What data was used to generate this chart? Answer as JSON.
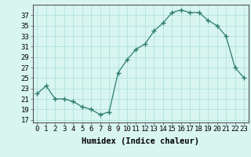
{
  "x": [
    0,
    1,
    2,
    3,
    4,
    5,
    6,
    7,
    8,
    9,
    10,
    11,
    12,
    13,
    14,
    15,
    16,
    17,
    18,
    19,
    20,
    21,
    22,
    23
  ],
  "y": [
    22,
    23.5,
    21,
    21,
    20.5,
    19.5,
    19,
    18,
    18.5,
    26,
    28.5,
    30.5,
    31.5,
    34,
    35.5,
    37.5,
    38,
    37.5,
    37.5,
    36,
    35,
    33,
    27,
    25
  ],
  "line_color": "#2e7d6e",
  "marker_color": "#2e7d6e",
  "bg_color": "#d8f5f0",
  "grid_color": "#aadddd",
  "xlabel": "Humidex (Indice chaleur)",
  "ylabel_ticks": [
    17,
    19,
    21,
    23,
    25,
    27,
    29,
    31,
    33,
    35,
    37
  ],
  "ylim": [
    16.5,
    39
  ],
  "xlim": [
    -0.5,
    23.5
  ],
  "tick_fontsize": 6.5,
  "xlabel_fontsize": 7.5
}
